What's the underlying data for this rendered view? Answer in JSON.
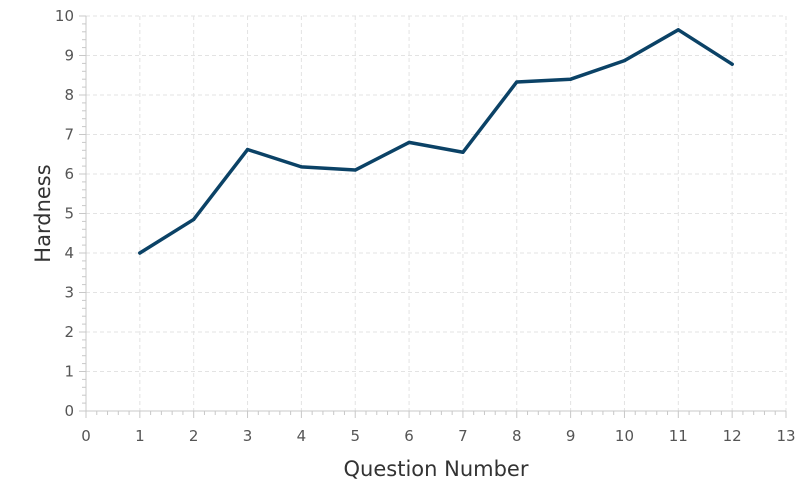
{
  "chart_data": {
    "type": "line",
    "title": "",
    "xlabel": "Question Number",
    "ylabel": "Hardness",
    "xlim": [
      0,
      13
    ],
    "ylim": [
      0,
      10
    ],
    "x_ticks": [
      0,
      1,
      2,
      3,
      4,
      5,
      6,
      7,
      8,
      9,
      10,
      11,
      12,
      13
    ],
    "y_ticks": [
      0,
      1,
      2,
      3,
      4,
      5,
      6,
      7,
      8,
      9,
      10
    ],
    "x_minor_per_major": 4,
    "y_minor_per_major": 4,
    "grid": true,
    "legend": "none",
    "series": [
      {
        "color": "#0b4266",
        "points": [
          {
            "x": 1,
            "y": 4.0
          },
          {
            "x": 2,
            "y": 4.85
          },
          {
            "x": 3,
            "y": 6.62
          },
          {
            "x": 4,
            "y": 6.18
          },
          {
            "x": 5,
            "y": 6.1
          },
          {
            "x": 6,
            "y": 6.8
          },
          {
            "x": 7,
            "y": 6.55
          },
          {
            "x": 8,
            "y": 8.33
          },
          {
            "x": 9,
            "y": 8.4
          },
          {
            "x": 10,
            "y": 8.87
          },
          {
            "x": 11,
            "y": 9.65
          },
          {
            "x": 12,
            "y": 8.78
          }
        ]
      }
    ]
  }
}
